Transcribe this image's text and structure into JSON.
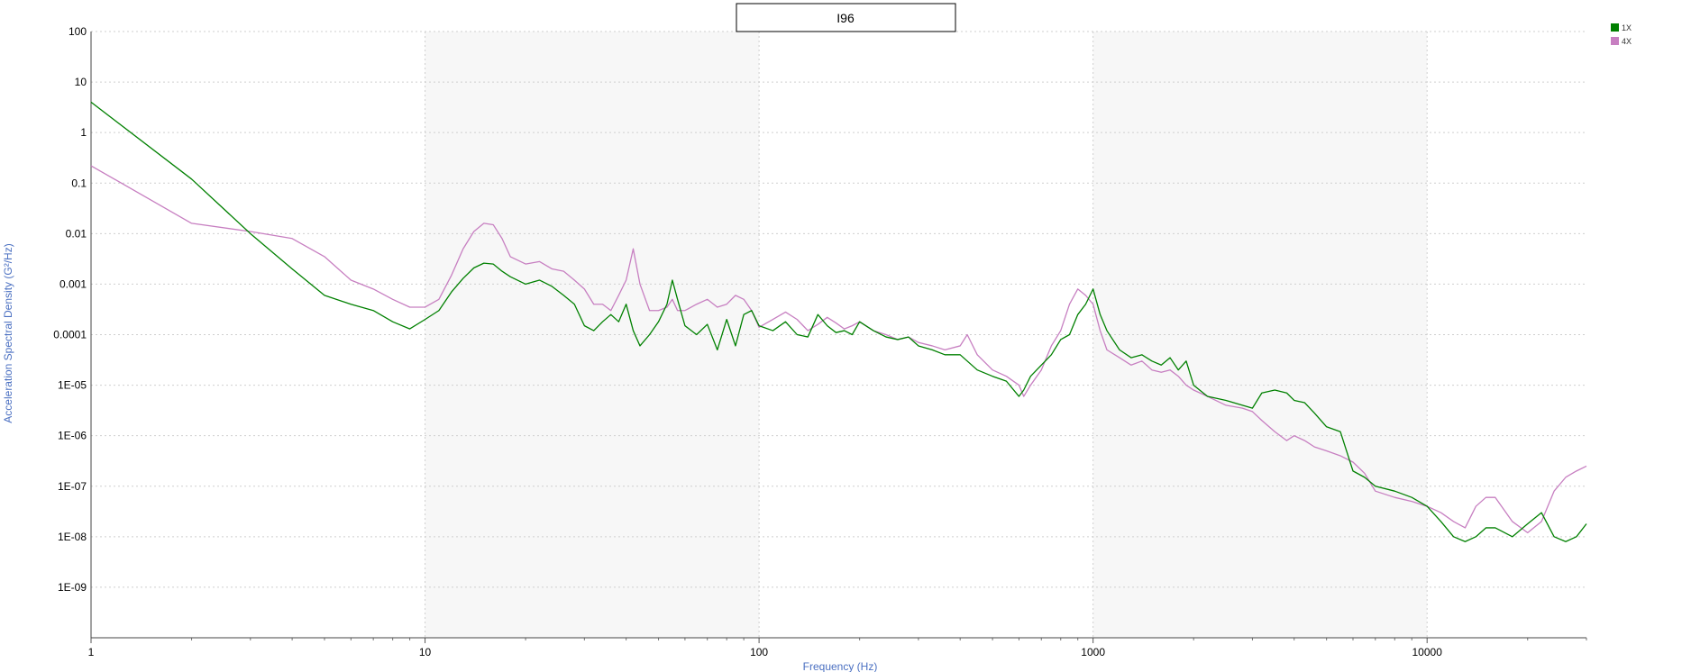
{
  "chart_data": {
    "type": "line",
    "title": "I96",
    "xlabel": "Frequency (Hz)",
    "ylabel": "Acceleration Spectral Density (G²/Hz)",
    "x_scale": "log",
    "y_scale": "log",
    "xlim": [
      1,
      30000
    ],
    "ylim": [
      1e-10,
      100
    ],
    "x_tick_values": [
      1,
      10,
      100,
      1000,
      10000
    ],
    "x_tick_labels": [
      "1",
      "10",
      "100",
      "1000",
      "10000"
    ],
    "y_tick_values": [
      1e-09,
      1e-08,
      1e-07,
      1e-06,
      1e-05,
      0.0001,
      0.001,
      0.01,
      0.1,
      1,
      10,
      100
    ],
    "y_tick_labels": [
      "1E-09",
      "1E-08",
      "1E-07",
      "1E-06",
      "1E-05",
      "0.0001",
      "0.001",
      "0.01",
      "0.1",
      "1",
      "10",
      "100"
    ],
    "grid": "dotted",
    "alternating_decade_shading": true,
    "legend_position": "top-right",
    "series": [
      {
        "name": "1X",
        "color": "#008000",
        "x": [
          1,
          2,
          3,
          4,
          5,
          6,
          7,
          8,
          9,
          10,
          11,
          12,
          13,
          14,
          15,
          16,
          17,
          18,
          20,
          22,
          24,
          26,
          28,
          30,
          32,
          34,
          36,
          38,
          40,
          42,
          44,
          47,
          50,
          53,
          55,
          57,
          60,
          65,
          70,
          75,
          80,
          85,
          90,
          95,
          100,
          110,
          120,
          130,
          140,
          150,
          160,
          170,
          180,
          190,
          200,
          220,
          240,
          260,
          280,
          300,
          330,
          360,
          400,
          420,
          450,
          500,
          550,
          600,
          620,
          650,
          700,
          750,
          800,
          850,
          900,
          950,
          1000,
          1050,
          1100,
          1200,
          1300,
          1400,
          1500,
          1600,
          1700,
          1800,
          1900,
          2000,
          2200,
          2500,
          2800,
          3000,
          3200,
          3500,
          3800,
          4000,
          4300,
          4600,
          5000,
          5500,
          6000,
          6500,
          7000,
          8000,
          9000,
          10000,
          11000,
          12000,
          13000,
          14000,
          15000,
          16000,
          18000,
          20000,
          22000,
          24000,
          26000,
          28000,
          30000
        ],
        "y": [
          4,
          0.12,
          0.01,
          0.002,
          0.0006,
          0.0004,
          0.0003,
          0.00018,
          0.00013,
          0.0002,
          0.0003,
          0.0007,
          0.0013,
          0.0021,
          0.0026,
          0.0025,
          0.0018,
          0.0014,
          0.001,
          0.0012,
          0.0009,
          0.0006,
          0.0004,
          0.00015,
          0.00012,
          0.00018,
          0.00025,
          0.00018,
          0.0004,
          0.00012,
          6e-05,
          0.0001,
          0.00018,
          0.0004,
          0.0012,
          0.0005,
          0.00015,
          0.0001,
          0.00016,
          5e-05,
          0.0002,
          6e-05,
          0.00025,
          0.0003,
          0.00015,
          0.00012,
          0.00018,
          0.0001,
          9e-05,
          0.00025,
          0.00015,
          0.00011,
          0.00012,
          0.0001,
          0.00018,
          0.00012,
          9e-05,
          8e-05,
          9e-05,
          6e-05,
          5e-05,
          4e-05,
          4e-05,
          3e-05,
          2e-05,
          1.5e-05,
          1.2e-05,
          6e-06,
          8e-06,
          1.5e-05,
          2.5e-05,
          4e-05,
          8e-05,
          0.0001,
          0.00025,
          0.0004,
          0.0008,
          0.00025,
          0.00012,
          5e-05,
          3.5e-05,
          4e-05,
          3e-05,
          2.5e-05,
          3.5e-05,
          2e-05,
          3e-05,
          1e-05,
          6e-06,
          5e-06,
          4e-06,
          3.5e-06,
          7e-06,
          8e-06,
          7e-06,
          5e-06,
          4.5e-06,
          2.8e-06,
          1.5e-06,
          1.2e-06,
          2e-07,
          1.5e-07,
          1e-07,
          8e-08,
          6e-08,
          4e-08,
          2e-08,
          1e-08,
          8e-09,
          1e-08,
          1.5e-08,
          1.5e-08,
          1e-08,
          1.8e-08,
          3e-08,
          1e-08,
          8e-09,
          1e-08,
          1.8e-08
        ]
      },
      {
        "name": "4X",
        "color": "#c77fc1",
        "x": [
          1,
          2,
          3,
          4,
          5,
          6,
          7,
          8,
          9,
          10,
          11,
          12,
          13,
          14,
          15,
          16,
          17,
          18,
          20,
          22,
          24,
          26,
          28,
          30,
          32,
          34,
          36,
          38,
          40,
          42,
          44,
          47,
          50,
          53,
          55,
          57,
          60,
          65,
          70,
          75,
          80,
          85,
          90,
          95,
          100,
          110,
          120,
          130,
          140,
          150,
          160,
          170,
          180,
          190,
          200,
          220,
          240,
          260,
          280,
          300,
          330,
          360,
          400,
          420,
          450,
          500,
          550,
          600,
          620,
          650,
          700,
          750,
          800,
          850,
          900,
          950,
          1000,
          1050,
          1100,
          1200,
          1300,
          1400,
          1500,
          1600,
          1700,
          1800,
          1900,
          2000,
          2200,
          2500,
          2800,
          3000,
          3200,
          3500,
          3800,
          4000,
          4300,
          4600,
          5000,
          5500,
          6000,
          6500,
          7000,
          8000,
          9000,
          10000,
          11000,
          12000,
          13000,
          14000,
          15000,
          16000,
          18000,
          20000,
          22000,
          24000,
          26000,
          28000,
          30000
        ],
        "y": [
          0.22,
          0.016,
          0.011,
          0.008,
          0.0035,
          0.0012,
          0.0008,
          0.0005,
          0.00035,
          0.00035,
          0.0005,
          0.0015,
          0.005,
          0.011,
          0.016,
          0.015,
          0.008,
          0.0035,
          0.0025,
          0.0028,
          0.002,
          0.0018,
          0.0012,
          0.0008,
          0.0004,
          0.0004,
          0.0003,
          0.0006,
          0.0012,
          0.005,
          0.001,
          0.0003,
          0.0003,
          0.00035,
          0.0005,
          0.0003,
          0.0003,
          0.0004,
          0.0005,
          0.00035,
          0.0004,
          0.0006,
          0.0005,
          0.0003,
          0.00014,
          0.0002,
          0.00028,
          0.0002,
          0.00012,
          0.00016,
          0.00022,
          0.00017,
          0.00013,
          0.00015,
          0.00018,
          0.00012,
          0.0001,
          8e-05,
          9e-05,
          7e-05,
          6e-05,
          5e-05,
          6e-05,
          0.0001,
          4e-05,
          2e-05,
          1.5e-05,
          1e-05,
          6e-06,
          1e-05,
          2e-05,
          6e-05,
          0.00012,
          0.0004,
          0.0008,
          0.0006,
          0.0004,
          0.00012,
          5e-05,
          3.5e-05,
          2.5e-05,
          3e-05,
          2e-05,
          1.8e-05,
          2e-05,
          1.5e-05,
          1e-05,
          8e-06,
          6e-06,
          4e-06,
          3.5e-06,
          3e-06,
          2e-06,
          1.2e-06,
          8e-07,
          1e-06,
          8e-07,
          6e-07,
          5e-07,
          4e-07,
          3e-07,
          1.8e-07,
          8e-08,
          6e-08,
          5e-08,
          4e-08,
          3e-08,
          2e-08,
          1.5e-08,
          4e-08,
          6e-08,
          6e-08,
          2e-08,
          1.2e-08,
          2e-08,
          8e-08,
          1.5e-07,
          2e-07,
          2.5e-07
        ]
      }
    ]
  }
}
